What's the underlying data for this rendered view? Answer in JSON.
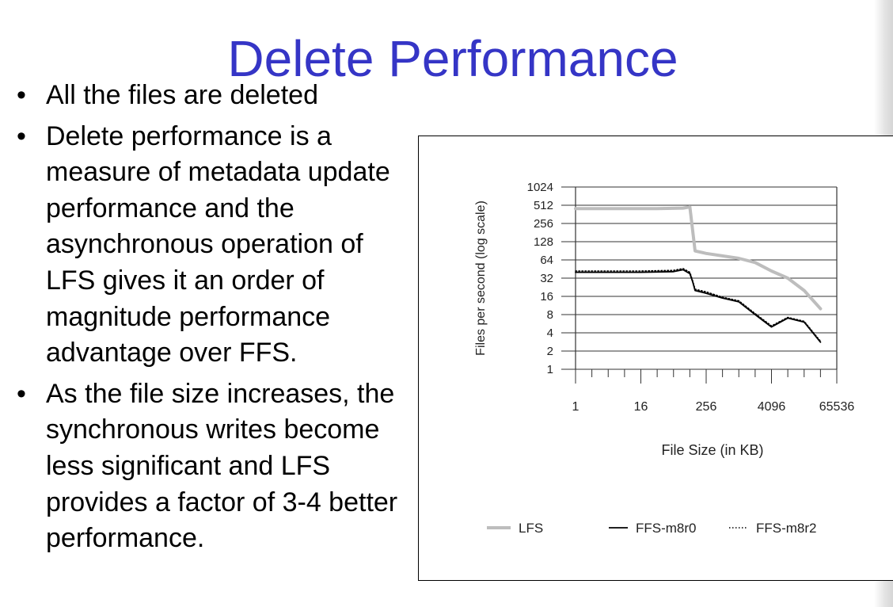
{
  "slide": {
    "title": "Delete Performance",
    "bullets": [
      "All the files are deleted",
      "Delete performance is a measure of metadata update performance and the asynchronous operation of LFS gives it an order of magnitude performance advantage over FFS.",
      "As the file size increases, the synchronous writes become less significant and LFS provides a factor of 3-4 better performance."
    ],
    "bullet_symbol": "•",
    "title_color": "#3535c6"
  },
  "chart_data": {
    "type": "line",
    "title": "",
    "xlabel": "File Size (in KB)",
    "ylabel": "Files per second (log scale)",
    "x_scale": "log2",
    "y_scale": "log2",
    "x_ticks": [
      "1",
      "16",
      "256",
      "4096",
      "65536"
    ],
    "x_tick_values": [
      1,
      16,
      256,
      4096,
      65536
    ],
    "y_ticks": [
      "1",
      "2",
      "4",
      "8",
      "16",
      "32",
      "64",
      "128",
      "256",
      "512",
      "1024"
    ],
    "xlim": [
      1,
      65536
    ],
    "ylim": [
      1,
      1024
    ],
    "grid": "horizontal",
    "legend_position": "bottom",
    "series": [
      {
        "name": "LFS",
        "color": "#bdbdbd",
        "style": "solid",
        "x": [
          1,
          8,
          32,
          96,
          128,
          160,
          256,
          1024,
          2048,
          4096,
          8192,
          16384,
          32768
        ],
        "y": [
          450,
          450,
          450,
          460,
          480,
          90,
          82,
          68,
          58,
          42,
          32,
          20,
          10
        ]
      },
      {
        "name": "FFS-m8r0",
        "color": "#000000",
        "style": "solid",
        "x": [
          1,
          16,
          64,
          96,
          128,
          144,
          160,
          256,
          512,
          1024,
          2048,
          4096,
          8192,
          16384,
          32768
        ],
        "y": [
          40,
          40,
          41,
          44,
          38,
          28,
          20,
          18,
          15,
          13,
          8,
          5,
          7,
          6,
          2.8
        ]
      },
      {
        "name": "FFS-m8r2",
        "color": "#000000",
        "style": "dotted",
        "x": [
          1,
          16,
          64,
          96,
          128,
          144,
          160,
          256,
          512,
          1024,
          2048,
          4096,
          8192,
          16384,
          32768
        ],
        "y": [
          42,
          42,
          43,
          46,
          40,
          29,
          21,
          19,
          15.5,
          13.5,
          8.3,
          5.2,
          7.2,
          6.2,
          2.9
        ]
      }
    ]
  }
}
